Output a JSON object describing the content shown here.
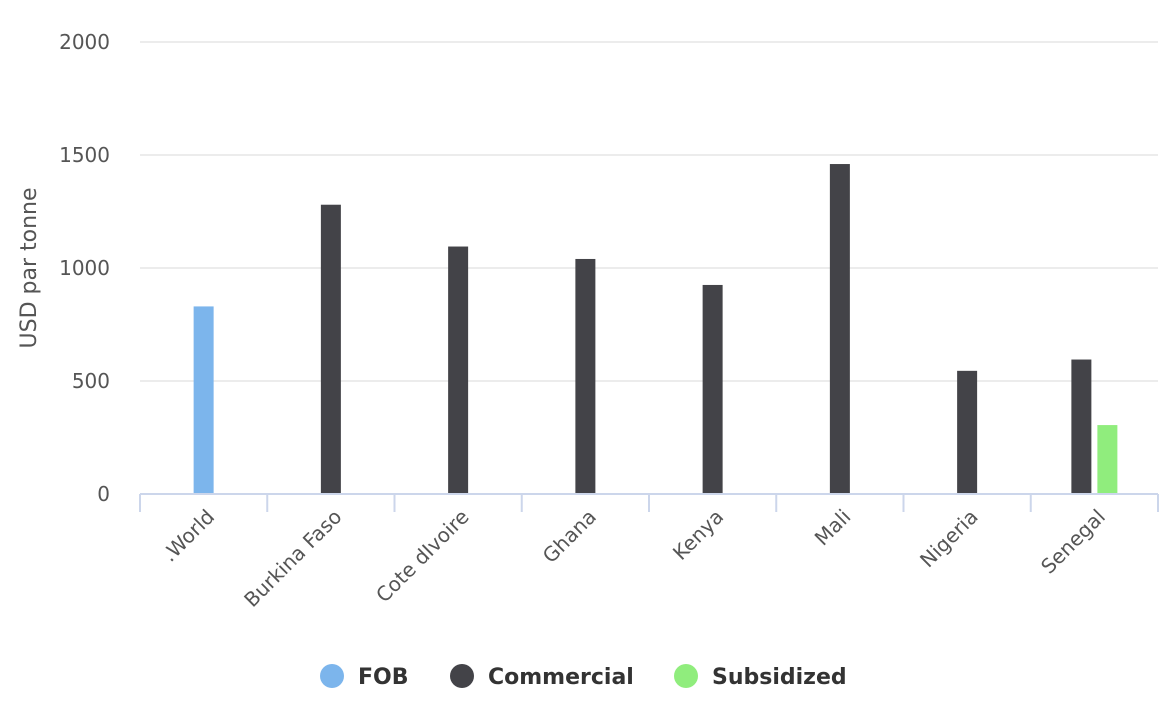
{
  "chart_data": {
    "type": "bar",
    "title": "",
    "xlabel": "",
    "ylabel": "USD par tonne",
    "ylim": [
      0,
      2000
    ],
    "yticks": [
      0,
      500,
      1000,
      1500,
      2000
    ],
    "grid": true,
    "legend_position": "bottom",
    "categories": [
      ".World",
      "Burkina Faso",
      "Cote dIvoire",
      "Ghana",
      "Kenya",
      "Mali",
      "Nigeria",
      "Senegal"
    ],
    "series": [
      {
        "name": "FOB",
        "color": "#7cb5ec",
        "values": [
          830,
          null,
          null,
          null,
          null,
          null,
          null,
          null
        ]
      },
      {
        "name": "Commercial",
        "color": "#434348",
        "values": [
          null,
          1280,
          1095,
          1040,
          925,
          1460,
          545,
          595
        ]
      },
      {
        "name": "Subsidized",
        "color": "#90ed7d",
        "values": [
          null,
          null,
          null,
          null,
          null,
          null,
          null,
          305
        ]
      }
    ]
  }
}
